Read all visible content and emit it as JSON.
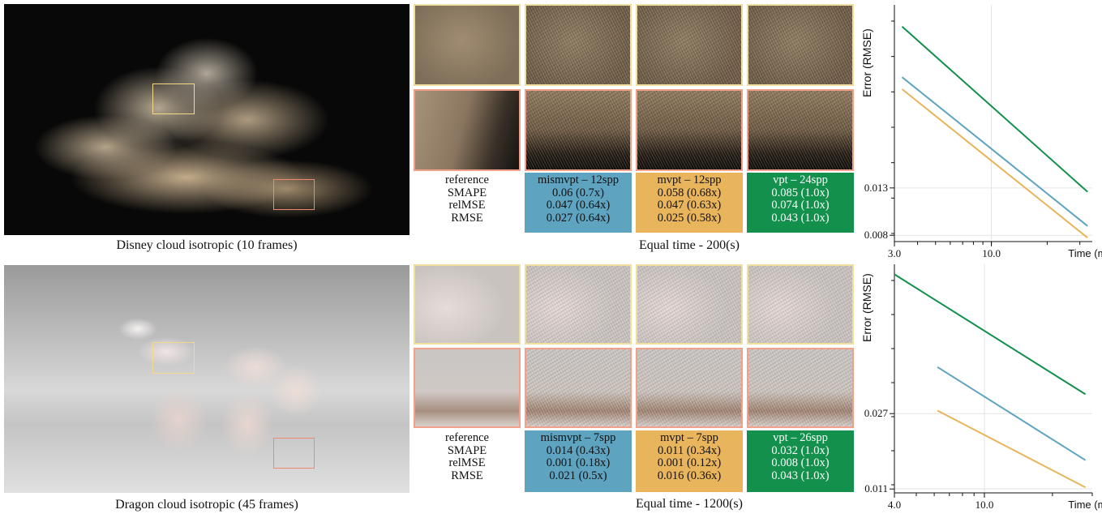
{
  "rows": [
    {
      "caption": "Disney cloud isotropic (10 frames)",
      "equal_time": "Equal time - 200(s)",
      "metric_labels": [
        "reference",
        "SMAPE",
        "relMSE",
        "RMSE"
      ],
      "methods": [
        {
          "name": "mismvpt – 12spp",
          "smape": "0.06 (0.7x)",
          "relmse": "0.047 (0.64x)",
          "rmse": "0.027 (0.64x)",
          "color": "#5ea3c0"
        },
        {
          "name": "mvpt – 12spp",
          "smape": "0.058 (0.68x)",
          "relmse": "0.047 (0.63x)",
          "rmse": "0.025 (0.58x)",
          "color": "#e8b45c"
        },
        {
          "name": "vpt – 24spp",
          "smape": "0.085 (1.0x)",
          "relmse": "0.074 (1.0x)",
          "rmse": "0.043 (1.0x)",
          "color": "#12904c"
        }
      ]
    },
    {
      "caption": "Dragon cloud isotropic (45 frames)",
      "equal_time": "Equal time - 1200(s)",
      "metric_labels": [
        "reference",
        "SMAPE",
        "relMSE",
        "RMSE"
      ],
      "methods": [
        {
          "name": "mismvpt – 7spp",
          "smape": "0.014 (0.43x)",
          "relmse": "0.001 (0.18x)",
          "rmse": "0.021 (0.5x)",
          "color": "#5ea3c0"
        },
        {
          "name": "mvpt – 7spp",
          "smape": "0.011 (0.34x)",
          "relmse": "0.001 (0.12x)",
          "rmse": "0.016 (0.36x)",
          "color": "#e8b45c"
        },
        {
          "name": "vpt – 26spp",
          "smape": "0.032 (1.0x)",
          "relmse": "0.008 (1.0x)",
          "rmse": "0.043 (1.0x)",
          "color": "#12904c"
        }
      ]
    }
  ],
  "chart_data": [
    {
      "type": "line",
      "ylabel": "Error (RMSE)",
      "xlabel": "Time (m)",
      "x_scale": "log",
      "y_scale": "log",
      "xlim": [
        3.0,
        35
      ],
      "ylim": [
        0.0075,
        0.085
      ],
      "xticks": [
        "3.0",
        "10.0"
      ],
      "yticks": [
        "0.013",
        "0.008"
      ],
      "grid": true,
      "series": [
        {
          "color": "#12904c",
          "x": [
            3.3,
            33
          ],
          "y": [
            0.068,
            0.0125
          ]
        },
        {
          "color": "#5ea3c0",
          "x": [
            3.3,
            33
          ],
          "y": [
            0.0405,
            0.0088
          ]
        },
        {
          "color": "#e8b45c",
          "x": [
            3.3,
            33
          ],
          "y": [
            0.0358,
            0.0078
          ]
        }
      ]
    },
    {
      "type": "line",
      "ylabel": "Error (RMSE)",
      "xlabel": "Time (m)",
      "x_scale": "log",
      "y_scale": "log",
      "xlim": [
        4.0,
        30
      ],
      "ylim": [
        0.0105,
        0.16
      ],
      "xticks": [
        "4.0",
        "10.0"
      ],
      "yticks": [
        "0.027",
        "0.011"
      ],
      "grid": true,
      "series": [
        {
          "color": "#12904c",
          "x": [
            4.0,
            28
          ],
          "y": [
            0.142,
            0.034
          ]
        },
        {
          "color": "#5ea3c0",
          "x": [
            6.2,
            28
          ],
          "y": [
            0.047,
            0.0155
          ]
        },
        {
          "color": "#e8b45c",
          "x": [
            6.2,
            28
          ],
          "y": [
            0.028,
            0.0112
          ]
        }
      ]
    }
  ]
}
